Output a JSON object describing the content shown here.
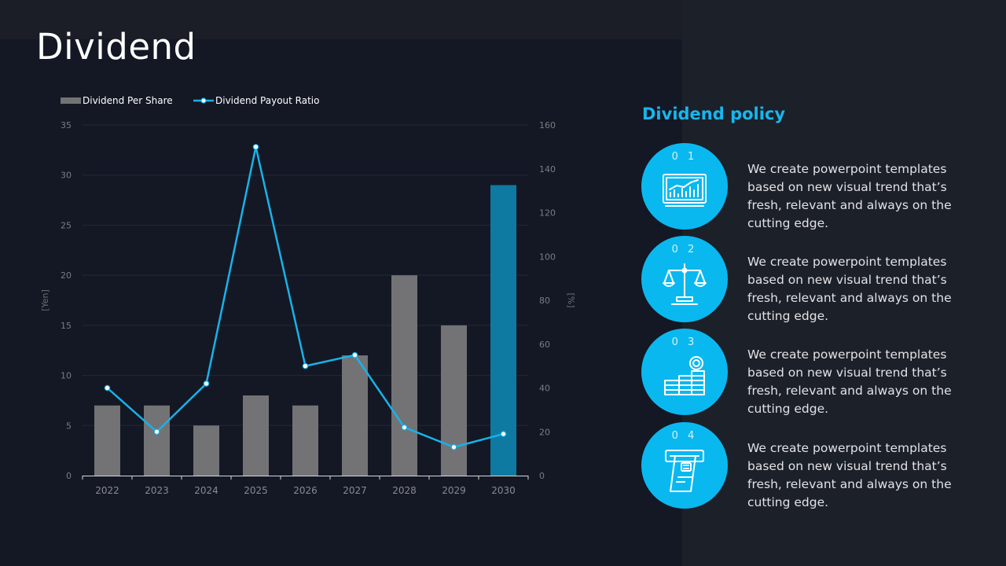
{
  "page": {
    "title": "Dividend"
  },
  "chart_data": {
    "type": "bar",
    "categories": [
      "2022",
      "2023",
      "2024",
      "2025",
      "2026",
      "2027",
      "2028",
      "2029",
      "2030"
    ],
    "series": [
      {
        "name": "Dividend Per Share",
        "type": "bar",
        "axis": "left",
        "values": [
          7,
          7,
          5,
          8,
          7,
          12,
          20,
          15,
          29
        ]
      },
      {
        "name": "Dividend Payout Ratio",
        "type": "line",
        "axis": "right",
        "values": [
          40,
          20,
          42,
          150,
          50,
          55,
          22,
          13,
          19
        ]
      }
    ],
    "ylabel": "[Yen]",
    "y2label": "[%]",
    "ylim": [
      0,
      35
    ],
    "y2lim": [
      0,
      160
    ],
    "yticks": [
      0,
      5,
      10,
      15,
      20,
      25,
      30,
      35
    ],
    "y2ticks": [
      0,
      20,
      40,
      60,
      80,
      100,
      120,
      140,
      160
    ],
    "grid": true,
    "legend": "top-left",
    "colors": {
      "bar": "#737376",
      "bar_highlight": "#0e7aa2",
      "line": "#18b2ea"
    }
  },
  "policy": {
    "title": "Dividend policy",
    "items": [
      {
        "number": "0 1",
        "icon": "chart-screen-icon",
        "text": "We create powerpoint templates based on new visual trend that’s fresh, relevant and always on the cutting edge."
      },
      {
        "number": "0 2",
        "icon": "balance-scale-icon",
        "text": "We create powerpoint templates based on new visual trend that’s fresh, relevant and always on the cutting edge."
      },
      {
        "number": "0 3",
        "icon": "coin-stack-icon",
        "text": "We create powerpoint templates based on new visual trend that’s fresh, relevant and always on the cutting edge."
      },
      {
        "number": "0 4",
        "icon": "card-payment-icon",
        "text": "We create powerpoint templates based on new visual trend that’s fresh, relevant and always on the cutting edge."
      }
    ]
  }
}
